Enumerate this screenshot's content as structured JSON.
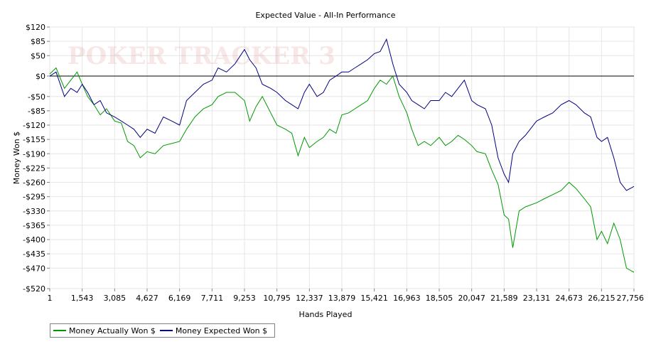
{
  "chart_data": {
    "type": "line",
    "title": "Expected Value - All-In Performance",
    "xlabel": "Hands Played",
    "ylabel": "Money Won $",
    "xlim": [
      1,
      27756
    ],
    "ylim": [
      -520,
      120
    ],
    "x_ticks": [
      1,
      1543,
      3085,
      4627,
      6169,
      7711,
      9253,
      10795,
      12337,
      13879,
      15421,
      16963,
      18505,
      20047,
      21589,
      23131,
      24673,
      26215,
      27756
    ],
    "x_tick_labels": [
      "1",
      "1,543",
      "3,085",
      "4,627",
      "6,169",
      "7,711",
      "9,253",
      "10,795",
      "12,337",
      "13,879",
      "15,421",
      "16,963",
      "18,505",
      "20,047",
      "21,589",
      "23,131",
      "24,673",
      "26,215",
      "27,756"
    ],
    "y_ticks": [
      120,
      85,
      50,
      0,
      -50,
      -85,
      -120,
      -155,
      -190,
      -225,
      -260,
      -295,
      -330,
      -365,
      -400,
      -435,
      -470,
      -520
    ],
    "y_tick_labels": [
      "$120",
      "$85",
      "$50",
      "$0",
      "-$50",
      "-$85",
      "-$120",
      "-$155",
      "-$190",
      "-$225",
      "-$260",
      "-$295",
      "-$330",
      "-$365",
      "-$400",
      "-$435",
      "-$470",
      "-$520"
    ],
    "grid": true,
    "legend_position": "bottom-left",
    "watermark": "POKER TRACKER 3",
    "series": [
      {
        "name": "Money Actually Won $",
        "color": "#009900",
        "x": [
          1,
          300,
          700,
          1000,
          1300,
          1543,
          1800,
          2100,
          2400,
          2700,
          3085,
          3400,
          3700,
          4000,
          4300,
          4627,
          5000,
          5400,
          5800,
          6169,
          6500,
          6900,
          7300,
          7711,
          8000,
          8400,
          8800,
          9253,
          9500,
          9800,
          10100,
          10500,
          10795,
          11200,
          11500,
          11800,
          12100,
          12337,
          12700,
          13000,
          13300,
          13600,
          13879,
          14200,
          14500,
          14800,
          15100,
          15421,
          15700,
          16000,
          16300,
          16600,
          16963,
          17200,
          17500,
          17800,
          18100,
          18505,
          18800,
          19100,
          19400,
          19700,
          20047,
          20300,
          20700,
          21000,
          21300,
          21589,
          21800,
          22000,
          22300,
          22600,
          23131,
          23500,
          23900,
          24300,
          24673,
          25000,
          25400,
          25700,
          26000,
          26215,
          26500,
          26800,
          27100,
          27400,
          27756
        ],
        "y": [
          5,
          20,
          -30,
          -10,
          10,
          -20,
          -50,
          -70,
          -95,
          -80,
          -110,
          -115,
          -160,
          -170,
          -200,
          -185,
          -190,
          -170,
          -165,
          -160,
          -130,
          -100,
          -80,
          -70,
          -50,
          -40,
          -40,
          -60,
          -110,
          -75,
          -50,
          -90,
          -120,
          -130,
          -140,
          -195,
          -150,
          -175,
          -160,
          -150,
          -130,
          -140,
          -95,
          -90,
          -80,
          -70,
          -60,
          -30,
          -10,
          -20,
          0,
          -50,
          -90,
          -130,
          -170,
          -160,
          -170,
          -150,
          -170,
          -160,
          -145,
          -155,
          -170,
          -185,
          -190,
          -230,
          -265,
          -340,
          -350,
          -420,
          -330,
          -320,
          -310,
          -300,
          -290,
          -280,
          -260,
          -275,
          -300,
          -320,
          -400,
          -380,
          -410,
          -360,
          -400,
          -470,
          -480
        ]
      },
      {
        "name": "Money Expected Won $",
        "color": "#000080",
        "x": [
          1,
          300,
          700,
          1000,
          1300,
          1543,
          1800,
          2100,
          2400,
          2700,
          3085,
          3400,
          3700,
          4000,
          4300,
          4627,
          5000,
          5400,
          5800,
          6169,
          6500,
          6900,
          7300,
          7711,
          8000,
          8400,
          8800,
          9253,
          9500,
          9800,
          10100,
          10500,
          10795,
          11200,
          11500,
          11800,
          12100,
          12337,
          12700,
          13000,
          13300,
          13600,
          13879,
          14200,
          14500,
          14800,
          15100,
          15421,
          15700,
          16000,
          16300,
          16600,
          16963,
          17200,
          17500,
          17800,
          18100,
          18505,
          18800,
          19100,
          19400,
          19700,
          20047,
          20300,
          20700,
          21000,
          21300,
          21589,
          21800,
          22000,
          22300,
          22600,
          23131,
          23500,
          23900,
          24300,
          24673,
          25000,
          25400,
          25700,
          26000,
          26215,
          26500,
          26800,
          27100,
          27400,
          27756
        ],
        "y": [
          0,
          10,
          -50,
          -30,
          -40,
          -20,
          -40,
          -70,
          -60,
          -90,
          -100,
          -110,
          -120,
          -130,
          -150,
          -130,
          -140,
          -100,
          -110,
          -120,
          -60,
          -40,
          -20,
          -10,
          20,
          10,
          30,
          65,
          40,
          20,
          -20,
          -30,
          -40,
          -60,
          -70,
          -80,
          -40,
          -20,
          -50,
          -40,
          -10,
          0,
          10,
          10,
          20,
          30,
          40,
          55,
          60,
          90,
          30,
          -20,
          -40,
          -60,
          -70,
          -80,
          -60,
          -60,
          -40,
          -50,
          -30,
          -10,
          -60,
          -70,
          -80,
          -120,
          -200,
          -240,
          -260,
          -190,
          -160,
          -145,
          -110,
          -100,
          -90,
          -70,
          -60,
          -70,
          -90,
          -100,
          -150,
          -160,
          -150,
          -200,
          -260,
          -280,
          -270
        ]
      }
    ]
  }
}
